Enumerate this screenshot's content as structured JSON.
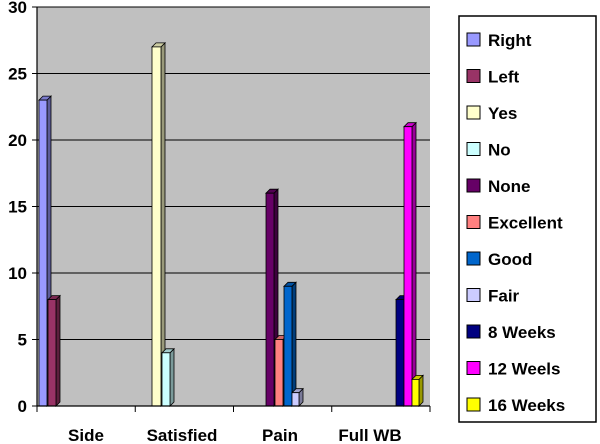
{
  "chart_data": {
    "type": "bar",
    "categories": [
      "Side",
      "Satisfied",
      "Pain",
      "Full WB"
    ],
    "ylim": [
      0,
      30
    ],
    "yticks": [
      0,
      5,
      10,
      15,
      20,
      25,
      30
    ],
    "grid": true,
    "legend_position": "right",
    "plot_background": "#c0c0c0",
    "series": [
      {
        "name": "Right",
        "color": "#9999ff",
        "category": "Side",
        "value": 23
      },
      {
        "name": "Left",
        "color": "#993366",
        "category": "Side",
        "value": 8
      },
      {
        "name": "Yes",
        "color": "#ffffcc",
        "category": "Satisfied",
        "value": 27
      },
      {
        "name": "No",
        "color": "#ccffff",
        "category": "Satisfied",
        "value": 4
      },
      {
        "name": "None",
        "color": "#660066",
        "category": "Pain",
        "value": 16
      },
      {
        "name": "Excellent",
        "color": "#ff8080",
        "category": "Pain",
        "value": 5
      },
      {
        "name": "Good",
        "color": "#0066cc",
        "category": "Pain",
        "value": 9
      },
      {
        "name": "Fair",
        "color": "#ccccff",
        "category": "Pain",
        "value": 1
      },
      {
        "name": "8 Weeks",
        "color": "#000080",
        "category": "Full WB",
        "value": 8
      },
      {
        "name": "12 Weels",
        "color": "#ff00ff",
        "category": "Full WB",
        "value": 21
      },
      {
        "name": "16 Weeks",
        "color": "#ffff00",
        "category": "Full WB",
        "value": 2
      }
    ]
  }
}
